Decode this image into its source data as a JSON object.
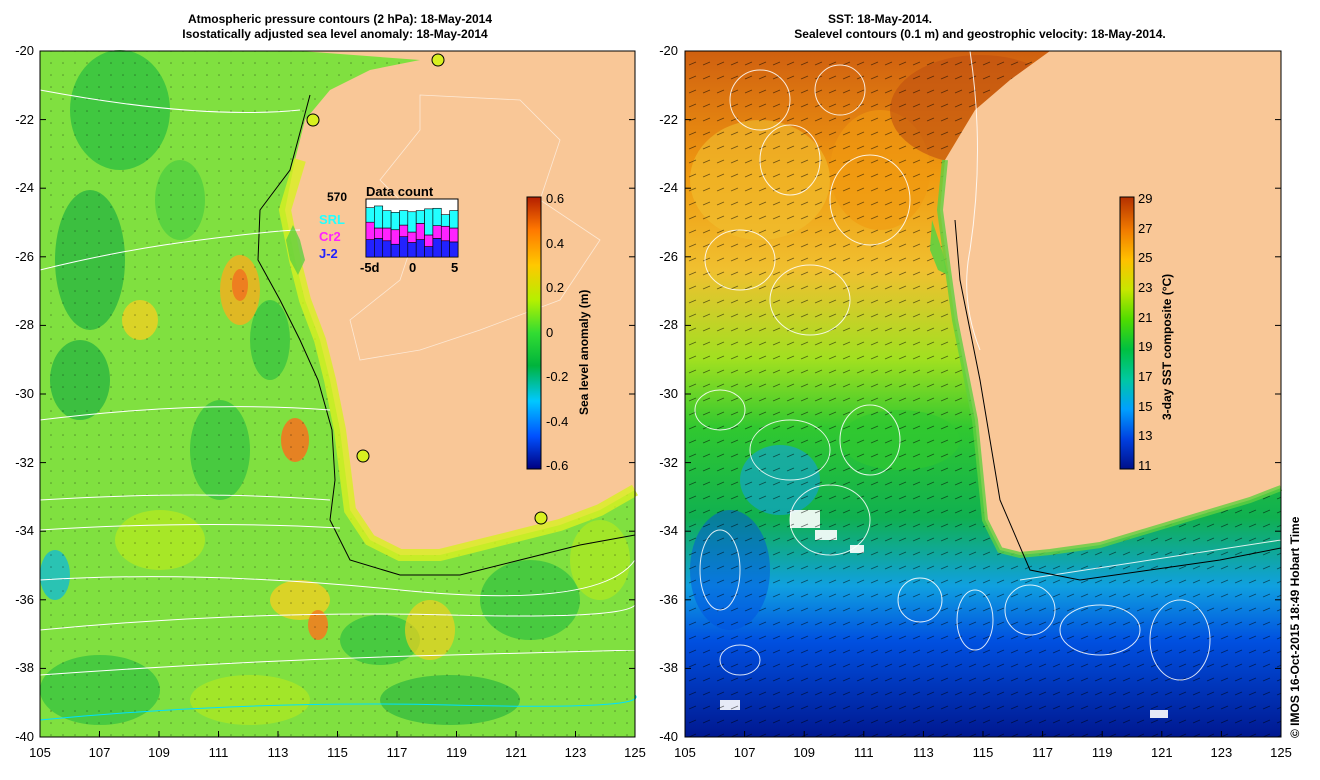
{
  "left_panel": {
    "title_line1": "Atmospheric pressure contours (2 hPa): 18-May-2014",
    "title_line2": "Isostatically adjusted sea level anomaly: 18-May-2014",
    "colorbar": {
      "label": "Sea level anomaly (m)",
      "ticks": [
        "0.6",
        "0.4",
        "0.2",
        "0",
        "-0.2",
        "-0.4",
        "-0.6"
      ]
    },
    "data_count": {
      "title": "Data count",
      "max": "570",
      "legend": [
        {
          "label": "SRL",
          "color": "#22ffff"
        },
        {
          "label": "Cr2",
          "color": "#ff22ff"
        },
        {
          "label": "J-2",
          "color": "#2222ff"
        }
      ],
      "xticks": [
        "-5d",
        "0",
        "5"
      ],
      "bars": [
        {
          "j2": 0.3,
          "cr2": 0.3,
          "srl": 0.25
        },
        {
          "j2": 0.32,
          "cr2": 0.18,
          "srl": 0.38
        },
        {
          "j2": 0.28,
          "cr2": 0.22,
          "srl": 0.3
        },
        {
          "j2": 0.22,
          "cr2": 0.25,
          "srl": 0.3
        },
        {
          "j2": 0.35,
          "cr2": 0.2,
          "srl": 0.25
        },
        {
          "j2": 0.25,
          "cr2": 0.18,
          "srl": 0.35
        },
        {
          "j2": 0.3,
          "cr2": 0.28,
          "srl": 0.22
        },
        {
          "j2": 0.18,
          "cr2": 0.2,
          "srl": 0.45
        },
        {
          "j2": 0.32,
          "cr2": 0.22,
          "srl": 0.3
        },
        {
          "j2": 0.28,
          "cr2": 0.25,
          "srl": 0.2
        },
        {
          "j2": 0.26,
          "cr2": 0.24,
          "srl": 0.3
        }
      ]
    }
  },
  "right_panel": {
    "title_line1": "SST: 18-May-2014.",
    "title_line2": "Sealevel contours (0.1 m) and geostrophic velocity: 18-May-2014.",
    "colorbar": {
      "label": "3-day SST composite (°C)",
      "ticks": [
        "29",
        "27",
        "25",
        "23",
        "21",
        "19",
        "17",
        "15",
        "13",
        "11"
      ]
    }
  },
  "axes": {
    "y_ticks": [
      "-20",
      "-22",
      "-24",
      "-26",
      "-28",
      "-30",
      "-32",
      "-34",
      "-36",
      "-38",
      "-40"
    ],
    "x_ticks": [
      "105",
      "107",
      "109",
      "111",
      "113",
      "115",
      "117",
      "119",
      "121",
      "123",
      "125"
    ]
  },
  "credit": "© IMOS 16-Oct-2015 18:49 Hobart Time",
  "colors": {
    "land": "#f9c797",
    "sla_scale": [
      "#000080",
      "#0050ff",
      "#00c8ff",
      "#00b43c",
      "#32dc32",
      "#b4f000",
      "#ffc800",
      "#ff7800",
      "#b41e00"
    ],
    "sst_scale": [
      "#00108a",
      "#0040e0",
      "#00a0ff",
      "#00c8a0",
      "#00c040",
      "#50dc00",
      "#c8e600",
      "#ffc000",
      "#f07a00",
      "#b43000"
    ]
  }
}
